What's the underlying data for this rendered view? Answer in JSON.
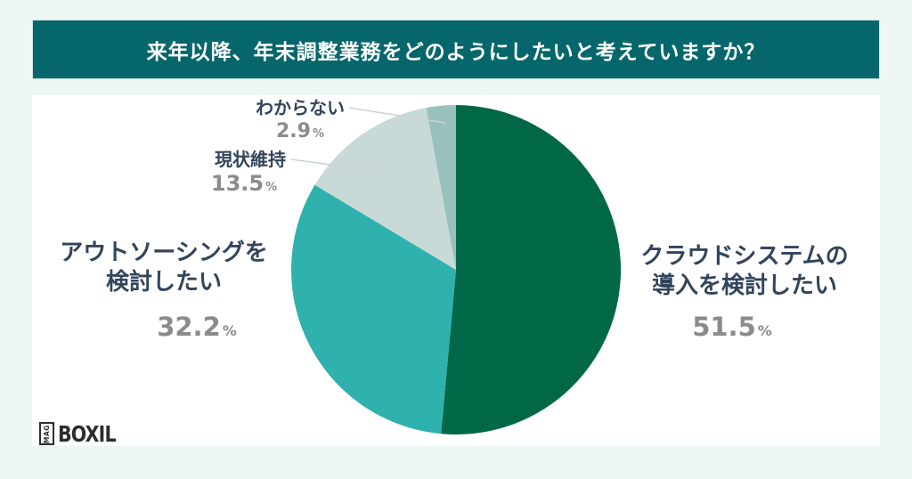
{
  "title": "来年以降、年末調整業務をどのようにしたいと考えていますか？",
  "colors": {
    "background": "#edf6f3",
    "banner": "#05676b",
    "panel": "#ffffff",
    "title_text": "#ffffff",
    "label_text": "#32455c",
    "percent_text": "#8b8b8b",
    "leader_line": "#ccd3d4",
    "logo": "#2d2d2d"
  },
  "chart_data": {
    "type": "pie",
    "title": "来年以降、年末調整業務をどのようにしたいと考えていますか？",
    "unit": "%",
    "start_angle_deg": 0,
    "direction": "clockwise",
    "slices": [
      {
        "label": "クラウドシステムの導入を検討したい",
        "value": 51.5,
        "color": "#006847"
      },
      {
        "label": "アウトソーシングを検討したい",
        "value": 32.2,
        "color": "#2fb1ae"
      },
      {
        "label": "現状維持",
        "value": 13.5,
        "color": "#c7dad7"
      },
      {
        "label": "わからない",
        "value": 2.9,
        "color": "#9ac0bd"
      }
    ]
  },
  "labels": {
    "cloud": {
      "line1": "クラウドシステムの",
      "line2": "導入を検討したい",
      "value": "51.5",
      "unit": "%"
    },
    "outsourcing": {
      "line1": "アウトソーシングを",
      "line2": "検討したい",
      "value": "32.2",
      "unit": "%"
    },
    "status_quo": {
      "name": "現状維持",
      "value": "13.5",
      "unit": "%"
    },
    "unsure": {
      "name": "わからない",
      "value": "2.9",
      "unit": "%"
    }
  },
  "brand": {
    "logo_box_text": "MAG",
    "logo_text": "BOXIL"
  }
}
